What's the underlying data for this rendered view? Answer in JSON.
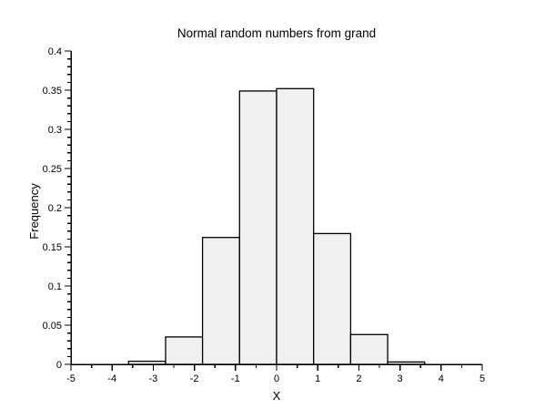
{
  "window": {
    "background": "#ffffff"
  },
  "chart_data": {
    "type": "bar",
    "subtype": "histogram",
    "title": "Normal random numbers from grand",
    "xlabel": "X",
    "ylabel": "Frequency",
    "xlim": [
      -5,
      5
    ],
    "ylim": [
      0,
      0.4
    ],
    "grid": false,
    "legend": "none",
    "x_tick_values": [
      -5,
      -4,
      -3,
      -2,
      -1,
      0,
      1,
      2,
      3,
      4,
      5
    ],
    "x_tick_labels": [
      "-5",
      "-4",
      "-3",
      "-2",
      "-1",
      "0",
      "1",
      "2",
      "3",
      "4",
      "5"
    ],
    "x_minor_step": 0.5,
    "y_tick_values": [
      0,
      0.05,
      0.1,
      0.15,
      0.2,
      0.25,
      0.3,
      0.35,
      0.4
    ],
    "y_tick_labels": [
      "0",
      "0.05",
      "0.1",
      "0.15",
      "0.2",
      "0.25",
      "0.3",
      "0.35",
      "0.4"
    ],
    "y_minor_step": 0.01,
    "bin_edges": [
      -3.6,
      -2.7,
      -1.8,
      -0.9,
      0,
      0.9,
      1.8,
      2.7,
      3.6
    ],
    "values": [
      0.004,
      0.035,
      0.162,
      0.349,
      0.352,
      0.167,
      0.038,
      0.003
    ],
    "colors": {
      "bar_fill": "#f0f0f0",
      "bar_stroke": "#000000",
      "axis": "#000000",
      "text": "#000000"
    }
  }
}
